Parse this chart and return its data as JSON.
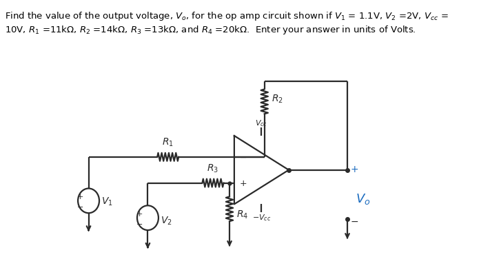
{
  "title_line1": "Find the value of the output voltage, $V_o$, for the op amp circuit shown if $V_1$ = 1.1V, $V_2$ =2V, $V_{cc}$ =",
  "title_line2": "10V, $R_1$ =11kΩ, $R_2$ =14kΩ, $R_3$ =13kΩ, and $R_4$ =20kΩ.  Enter your answer in units of Volts.",
  "bg_color": "#ffffff",
  "text_color": "#000000",
  "circuit_color": "#2a2a2a",
  "vo_color": "#1a6bbf",
  "fig_width": 7.11,
  "fig_height": 4.06,
  "lw": 1.6
}
